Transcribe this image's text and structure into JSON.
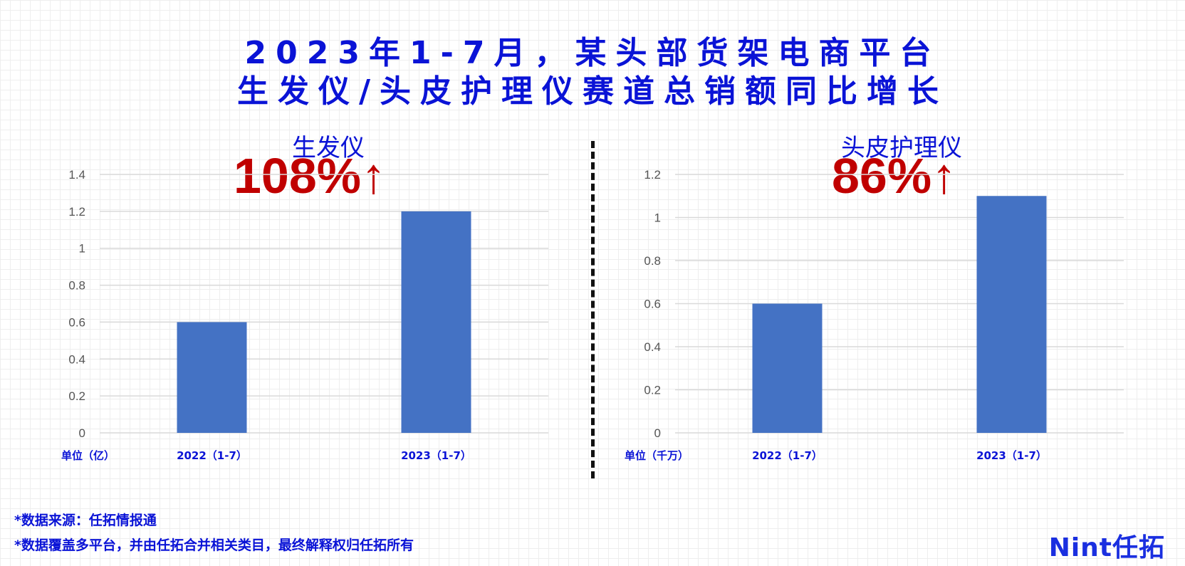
{
  "title": {
    "line1": "2023年1-7月，某头部货架电商平台",
    "line2": "生发仪/头皮护理仪赛道总销额同比增长"
  },
  "colors": {
    "title": "#0a13d6",
    "growth": "#c00000",
    "bar": "#4472c4",
    "gridline": "#d9d9d9"
  },
  "panels": [
    {
      "name": "生发仪",
      "growth": "108%",
      "growth_arrow": "↑",
      "unit_label": "单位（亿）"
    },
    {
      "name": "头皮护理仪",
      "growth": "86%",
      "growth_arrow": "↑",
      "unit_label": "单位（千万）"
    }
  ],
  "chart_data": [
    {
      "type": "bar",
      "title": "生发仪",
      "categories": [
        "2022（1-7）",
        "2023（1-7）"
      ],
      "values": [
        0.6,
        1.2
      ],
      "ylim": [
        0,
        1.4
      ],
      "yticks": [
        0,
        0.2,
        0.4,
        0.6,
        0.8,
        1,
        1.2,
        1.4
      ],
      "ytick_labels": [
        "0",
        "0.2",
        "0.4",
        "0.6",
        "0.8",
        "1",
        "1.2",
        "1.4"
      ],
      "grid": true,
      "legend": "none"
    },
    {
      "type": "bar",
      "title": "头皮护理仪",
      "categories": [
        "2022（1-7）",
        "2023（1-7）"
      ],
      "values": [
        0.6,
        1.1
      ],
      "ylim": [
        0,
        1.2
      ],
      "yticks": [
        0,
        0.2,
        0.4,
        0.6,
        0.8,
        1,
        1.2
      ],
      "ytick_labels": [
        "0",
        "0.2",
        "0.4",
        "0.6",
        "0.8",
        "1",
        "1.2"
      ],
      "grid": true,
      "legend": "none"
    }
  ],
  "footnotes": {
    "source": "*数据来源：任拓情报通",
    "coverage": "*数据覆盖多平台，并由任拓合并相关类目，最终解释权归任拓所有"
  },
  "logo": {
    "text": "Nint任拓"
  }
}
